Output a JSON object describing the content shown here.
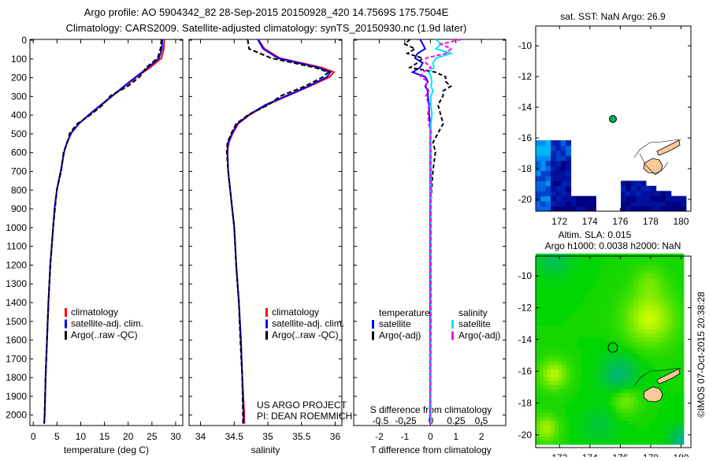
{
  "title": {
    "line1": "Argo profile: AO 5904342_82 28-Sep-2015 20150928_420 14.7569S 175.7504E",
    "line2": "Climatology: CARS2009. Satellite-adjusted climatology: synTS_20150930.nc (1.9d later)"
  },
  "colors": {
    "climatology": "#ff0000",
    "satellite": "#0000ff",
    "argo": "#000000",
    "sal_satellite": "#00e5ff",
    "sal_argo": "#ff00ff",
    "land": "#f9c99a"
  },
  "depth_ticks": [
    0,
    100,
    200,
    300,
    400,
    500,
    600,
    700,
    800,
    900,
    1000,
    1100,
    1200,
    1300,
    1400,
    1500,
    1600,
    1700,
    1800,
    1900,
    2000
  ],
  "chart_data": [
    {
      "type": "line",
      "id": "temperature",
      "xlabel": "temperature (deg C)",
      "ylabel": "",
      "xlim": [
        -0.7,
        31.5
      ],
      "ylim": [
        2060,
        0
      ],
      "xticks": [
        0,
        5,
        10,
        15,
        20,
        25,
        30
      ],
      "legend": [
        "climatology",
        "satellite-adj. clim.",
        "Argo(..raw -QC)"
      ],
      "legend_position": "lower-center",
      "depth": [
        0,
        50,
        100,
        150,
        200,
        250,
        300,
        350,
        400,
        450,
        500,
        550,
        600,
        700,
        800,
        900,
        1000,
        1200,
        1400,
        1600,
        1800,
        2000,
        2050
      ],
      "series": [
        {
          "name": "climatology",
          "values": [
            27.6,
            27.5,
            27.0,
            24.6,
            21.8,
            19.3,
            16.8,
            14.3,
            11.9,
            9.6,
            8.0,
            7.1,
            6.5,
            5.8,
            5.0,
            4.5,
            4.2,
            3.6,
            3.2,
            2.9,
            2.6,
            2.4,
            2.3
          ]
        },
        {
          "name": "satellite-adj. clim.",
          "values": [
            27.2,
            27.1,
            26.5,
            24.2,
            21.6,
            19.1,
            16.7,
            14.2,
            11.8,
            9.6,
            8.0,
            7.1,
            6.5,
            5.8,
            5.0,
            4.5,
            4.2,
            3.6,
            3.2,
            2.9,
            2.6,
            2.4,
            2.3
          ]
        },
        {
          "name": "Argo(..raw -QC)",
          "values": [
            27.0,
            26.8,
            26.2,
            23.8,
            22.4,
            19.9,
            16.3,
            14.6,
            12.2,
            9.3,
            7.7,
            7.2,
            6.4,
            5.9,
            5.0,
            4.6,
            4.2,
            3.6,
            3.2,
            2.9,
            2.6,
            2.4,
            2.3
          ]
        }
      ]
    },
    {
      "type": "line",
      "id": "salinity",
      "xlabel": "salinity",
      "ylabel": "",
      "xlim": [
        33.83,
        36.1
      ],
      "ylim": [
        2060,
        0
      ],
      "xticks": [
        34,
        34.5,
        35,
        35.5,
        36
      ],
      "legend": [
        "climatology",
        "satellite-adj. clim.",
        "Argo(..raw -QC)"
      ],
      "annotation": [
        "US ARGO PROJECT",
        "PI: DEAN ROEMMICH"
      ],
      "depth": [
        0,
        50,
        100,
        150,
        175,
        200,
        250,
        300,
        350,
        400,
        450,
        500,
        550,
        600,
        700,
        800,
        900,
        1000,
        1200,
        1400,
        1600,
        1800,
        2000,
        2050
      ],
      "series": [
        {
          "name": "climatology",
          "values": [
            34.86,
            34.95,
            35.18,
            35.8,
            35.98,
            35.92,
            35.62,
            35.3,
            34.98,
            34.74,
            34.56,
            34.48,
            34.42,
            34.4,
            34.41,
            34.44,
            34.47,
            34.5,
            34.53,
            34.57,
            34.6,
            34.62,
            34.65,
            34.65
          ]
        },
        {
          "name": "satellite-adj. clim.",
          "values": [
            34.85,
            34.93,
            35.15,
            35.75,
            35.93,
            35.88,
            35.6,
            35.28,
            34.96,
            34.73,
            34.55,
            34.47,
            34.41,
            34.4,
            34.41,
            34.44,
            34.47,
            34.5,
            34.53,
            34.57,
            34.6,
            34.62,
            34.64,
            34.64
          ]
        },
        {
          "name": "Argo(..raw -QC)",
          "values": [
            34.7,
            34.72,
            35.05,
            35.7,
            35.9,
            35.82,
            35.55,
            35.2,
            35.0,
            34.72,
            34.53,
            34.46,
            34.4,
            34.39,
            34.41,
            34.44,
            34.47,
            34.5,
            34.53,
            34.57,
            34.59,
            34.62,
            34.63,
            34.63
          ]
        }
      ]
    },
    {
      "type": "line",
      "id": "difference",
      "xlabel": "T difference from climatology",
      "xlabel_top": "S difference from climatology",
      "xlim": [
        -3.0,
        2.95
      ],
      "ylim": [
        2060,
        0
      ],
      "xticks": [
        -2,
        -1,
        0,
        1,
        2
      ],
      "sticks": [
        -0.5,
        -0.25,
        0,
        0.25,
        0.5
      ],
      "legend_groups": [
        {
          "title": "temperature",
          "items": [
            "satellite",
            "Argo(-adj)"
          ]
        },
        {
          "title": "salinity",
          "items": [
            "satellite",
            "Argo(-adj)"
          ]
        }
      ],
      "depth": [
        0,
        25,
        50,
        75,
        100,
        125,
        150,
        175,
        200,
        225,
        250,
        275,
        300,
        350,
        400,
        450,
        500,
        550,
        600,
        700,
        800,
        900,
        1000,
        1200,
        1500,
        2000,
        2050
      ],
      "series": [
        {
          "name": "temperature satellite",
          "values": [
            -0.4,
            -0.3,
            -0.2,
            -0.5,
            -0.6,
            -0.3,
            -0.4,
            -0.7,
            -0.2,
            -0.1,
            -0.2,
            -0.1,
            -0.1,
            -0.05,
            -0.05,
            0,
            0,
            0,
            0,
            0,
            0,
            0,
            0,
            0,
            0,
            0,
            0
          ]
        },
        {
          "name": "temperature Argo(-adj)",
          "values": [
            -0.8,
            -1.0,
            -0.6,
            -0.9,
            -0.3,
            -0.5,
            -0.8,
            0.2,
            0.6,
            0.6,
            0.8,
            0.5,
            0.5,
            0.3,
            0.4,
            0.5,
            0.3,
            0.1,
            0.2,
            0.1,
            0.05,
            0,
            0,
            0,
            0,
            0,
            0
          ]
        },
        {
          "name": "salinity satellite",
          "values": [
            0.05,
            0.1,
            0.05,
            0.2,
            0.05,
            0.02,
            0.03,
            -0.02,
            0.0,
            0.01,
            0.0,
            0.02,
            0.0,
            0.0,
            0.01,
            0.0,
            0.0,
            0.0,
            0.0,
            0.0,
            0.0,
            0.0,
            0.0,
            0.0,
            0.0,
            0.0,
            0.0
          ]
        },
        {
          "name": "salinity Argo(-adj)",
          "values": [
            0.3,
            0.1,
            0.2,
            0.15,
            -0.05,
            -0.05,
            0.0,
            -0.08,
            -0.1,
            -0.03,
            -0.05,
            -0.02,
            -0.05,
            -0.02,
            -0.03,
            -0.02,
            0.0,
            -0.01,
            0.0,
            0.0,
            0.0,
            0.0,
            0.0,
            0.0,
            0.0,
            -0.01,
            -0.01
          ]
        }
      ]
    },
    {
      "type": "heatmap",
      "id": "sst-map",
      "title": "sat. SST: NaN Argo: 26.9",
      "xlim": [
        170.43,
        180.65
      ],
      "ylim": [
        -20.77,
        -8.71
      ],
      "xticks": [
        172,
        174,
        176,
        178,
        180
      ],
      "yticks": [
        -10,
        -12,
        -14,
        -16,
        -18,
        -20
      ],
      "argo_position": {
        "lon": 175.75,
        "lat": -14.76
      }
    },
    {
      "type": "heatmap",
      "id": "sla-map",
      "title": "Altim. SLA: 0.015",
      "subtitle": "Argo h1000: 0.0038 h2000: NaN",
      "xlim": [
        170.43,
        180.65
      ],
      "ylim": [
        -20.8,
        -8.76
      ],
      "xticks": [
        172,
        174,
        176,
        178,
        180
      ],
      "yticks": [
        -10,
        -12,
        -14,
        -16,
        -18,
        -20
      ],
      "argo_position": {
        "lon": 175.75,
        "lat": -14.76
      }
    }
  ],
  "credit": "©IMOS 07-Oct-2015 20:38:28"
}
